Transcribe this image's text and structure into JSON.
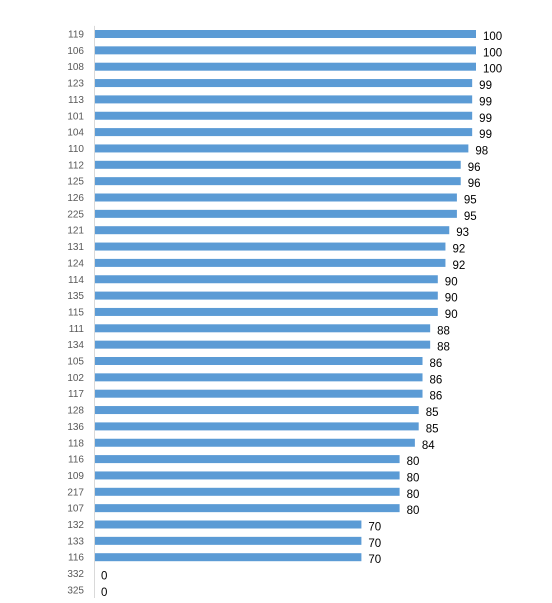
{
  "chart_data": {
    "type": "bar",
    "orientation": "horizontal",
    "categories": [
      "119",
      "106",
      "108",
      "123",
      "113",
      "101",
      "104",
      "110",
      "112",
      "125",
      "126",
      "225",
      "121",
      "131",
      "124",
      "114",
      "135",
      "115",
      "111",
      "134",
      "105",
      "102",
      "117",
      "128",
      "136",
      "118",
      "116",
      "109",
      "217",
      "107",
      "132",
      "133",
      "116",
      "332",
      "325"
    ],
    "values": [
      100,
      100,
      100,
      99,
      99,
      99,
      99,
      98,
      96,
      96,
      95,
      95,
      93,
      92,
      92,
      90,
      90,
      90,
      88,
      88,
      86,
      86,
      86,
      85,
      85,
      84,
      80,
      80,
      80,
      80,
      70,
      70,
      70,
      0,
      0
    ],
    "data_labels": [
      "100",
      "100",
      "100",
      "99",
      "99",
      "99",
      "99",
      "98",
      "96",
      "96",
      "95",
      "95",
      "93",
      "92",
      "92",
      "90",
      "90",
      "90",
      "88",
      "88",
      "86",
      "86",
      "86",
      "85",
      "85",
      "84",
      "80",
      "80",
      "80",
      "80",
      "70",
      "70",
      "70",
      "0",
      "0"
    ],
    "xlim": [
      0,
      100
    ],
    "grid": false,
    "legend": "none",
    "title": "",
    "xlabel": "",
    "ylabel": "",
    "colors": {
      "bar": "#5b9bd5",
      "axis": "#d9d9d9",
      "category_text": "#595959",
      "value_text": "#000000"
    }
  }
}
